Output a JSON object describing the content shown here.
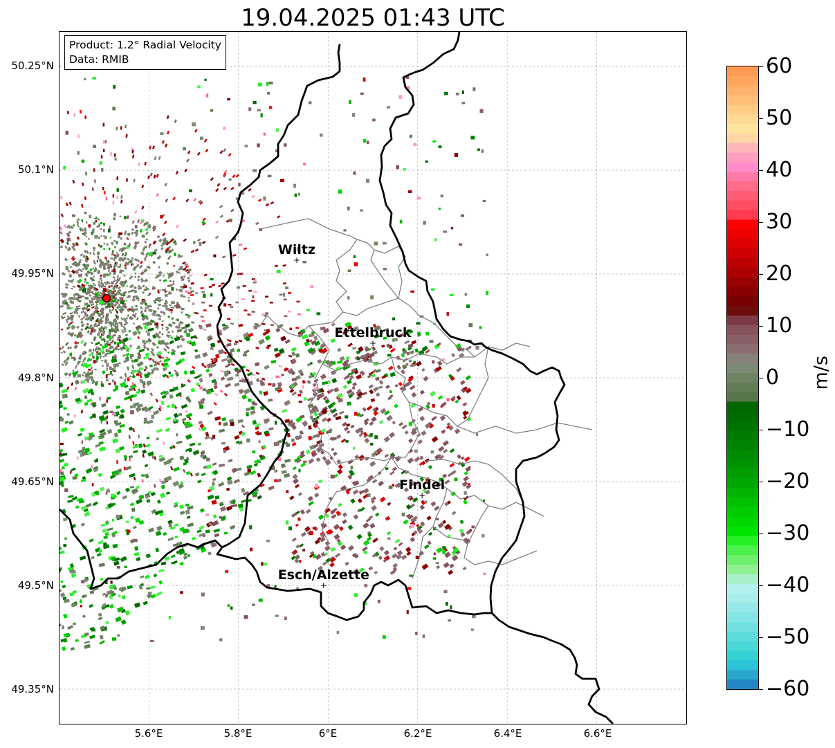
{
  "title": "19.04.2025 01:43 UTC",
  "info_box": {
    "product": "Product: 1.2° Radial Velocity",
    "data": "Data: RMIB"
  },
  "latitude_labels": [
    "50.25°N",
    "50.1°N",
    "49.95°N",
    "49.8°N",
    "49.65°N",
    "49.5°N",
    "49.35°N"
  ],
  "longitude_labels": [
    "5.6°E",
    "5.8°E",
    "6°E",
    "6.2°E",
    "6.4°E",
    "6.6°E"
  ],
  "cities": [
    {
      "name": "Wiltz",
      "lon": 5.93,
      "lat": 49.97
    },
    {
      "name": "Ettelbruck",
      "lon": 6.1,
      "lat": 49.85
    },
    {
      "name": "Findel",
      "lon": 6.21,
      "lat": 49.63
    },
    {
      "name": "Esch/Alzette",
      "lon": 5.99,
      "lat": 49.5
    }
  ],
  "radar_site": {
    "lon": 5.505,
    "lat": 49.915,
    "color": "#ff0000"
  },
  "colorbar": {
    "unit": "m/s",
    "ticks": [
      "60",
      "50",
      "40",
      "30",
      "20",
      "10",
      "0",
      "−10",
      "−20",
      "−30",
      "−40",
      "−50",
      "−60"
    ],
    "min": -60,
    "max": 60,
    "colors_top_to_bottom": [
      "#ff9a52",
      "#ffa65e",
      "#ffb36c",
      "#ffbf79",
      "#ffcc86",
      "#ffd993",
      "#ffe49f",
      "#ffd6a6",
      "#ffb6b8",
      "#ff9fc3",
      "#ff8dcc",
      "#ff7aa6",
      "#ff6b8a",
      "#ff5b75",
      "#ff4d63",
      "#ff3b52",
      "#ff0000",
      "#ee0000",
      "#dd0000",
      "#cc0000",
      "#bb0000",
      "#aa0000",
      "#990000",
      "#880000",
      "#770000",
      "#6e0c0c",
      "#7d3b45",
      "#86525b",
      "#8a6068",
      "#8a6e72",
      "#88807a",
      "#7b8a74",
      "#6e8563",
      "#627d56",
      "#567549",
      "#006600",
      "#006c00",
      "#007400",
      "#007c00",
      "#008400",
      "#008c00",
      "#009400",
      "#009e00",
      "#00a800",
      "#00b400",
      "#00c000",
      "#00cc00",
      "#00d800",
      "#00e400",
      "#24f024",
      "#4cf04c",
      "#6cf06c",
      "#8ef08e",
      "#a8f0c8",
      "#b4f0ee",
      "#a8ecec",
      "#96e8e8",
      "#84e4e4",
      "#70e0e0",
      "#5cdcdc",
      "#48d8d8",
      "#34d2d2",
      "#2cc4d8",
      "#27a8cc",
      "#2288c4"
    ]
  },
  "map": {
    "lon_range": [
      5.4,
      6.8
    ],
    "lat_range": [
      49.3,
      50.3
    ],
    "grid": true
  }
}
